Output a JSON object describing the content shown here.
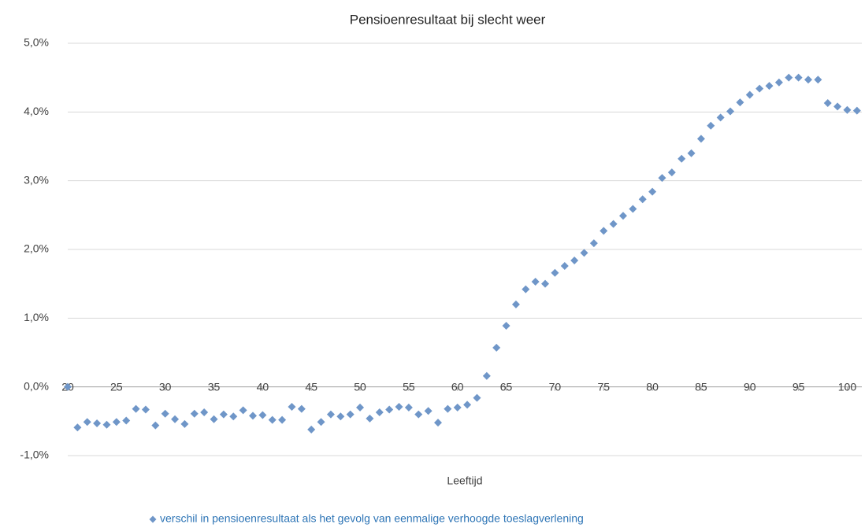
{
  "chart_data": {
    "type": "scatter",
    "title": "Pensioenresultaat bij slecht weer",
    "x_label": "Leeftijd",
    "x": [
      20,
      21,
      22,
      23,
      24,
      25,
      26,
      27,
      28,
      29,
      30,
      31,
      32,
      33,
      34,
      35,
      36,
      37,
      38,
      39,
      40,
      41,
      42,
      43,
      44,
      45,
      46,
      47,
      48,
      49,
      50,
      51,
      52,
      53,
      54,
      55,
      56,
      57,
      58,
      59,
      60,
      61,
      62,
      63,
      64,
      65,
      66,
      67,
      68,
      69,
      70,
      71,
      72,
      73,
      74,
      75,
      76,
      77,
      78,
      79,
      80,
      81,
      82,
      83,
      84,
      85,
      86,
      87,
      88,
      89,
      90,
      91,
      92,
      93,
      94,
      95,
      96,
      97,
      98,
      99,
      100,
      101
    ],
    "series": [
      {
        "name": "verschil in pensioenresultaat als het gevolg van eenmalige verhoogde toeslagverlening",
        "color": "#6f96c8",
        "values": [
          0.0,
          -0.59,
          -0.51,
          -0.53,
          -0.55,
          -0.51,
          -0.49,
          -0.32,
          -0.33,
          -0.56,
          -0.39,
          -0.47,
          -0.54,
          -0.39,
          -0.37,
          -0.47,
          -0.4,
          -0.43,
          -0.34,
          -0.42,
          -0.41,
          -0.48,
          -0.48,
          -0.29,
          -0.32,
          -0.62,
          -0.51,
          -0.4,
          -0.43,
          -0.4,
          -0.3,
          -0.46,
          -0.37,
          -0.33,
          -0.29,
          -0.3,
          -0.4,
          -0.35,
          -0.52,
          -0.32,
          -0.3,
          -0.26,
          -0.16,
          0.16,
          0.57,
          0.89,
          1.2,
          1.42,
          1.53,
          1.5,
          1.66,
          1.76,
          1.84,
          1.95,
          2.09,
          2.27,
          2.37,
          2.49,
          2.59,
          2.73,
          2.84,
          3.04,
          3.12,
          3.32,
          3.4,
          3.61,
          3.8,
          3.92,
          4.01,
          4.14,
          4.25,
          4.34,
          4.38,
          4.43,
          4.5,
          4.5,
          4.47,
          4.47,
          4.13,
          4.08,
          4.03,
          4.02
        ]
      }
    ],
    "xlim": [
      20,
      101.5
    ],
    "xticks": [
      20,
      25,
      30,
      35,
      40,
      45,
      50,
      55,
      60,
      65,
      70,
      75,
      80,
      85,
      90,
      95,
      100
    ],
    "ylim": [
      -1,
      5
    ],
    "yticks": [
      {
        "value": -1,
        "label": "-1,0%"
      },
      {
        "value": 0,
        "label": "0,0%"
      },
      {
        "value": 1,
        "label": "1,0%"
      },
      {
        "value": 2,
        "label": "2,0%"
      },
      {
        "value": 3,
        "label": "3,0%"
      },
      {
        "value": 4,
        "label": "4,0%"
      },
      {
        "value": 5,
        "label": "5,0%"
      }
    ],
    "grid": true,
    "legend": "bottom"
  }
}
